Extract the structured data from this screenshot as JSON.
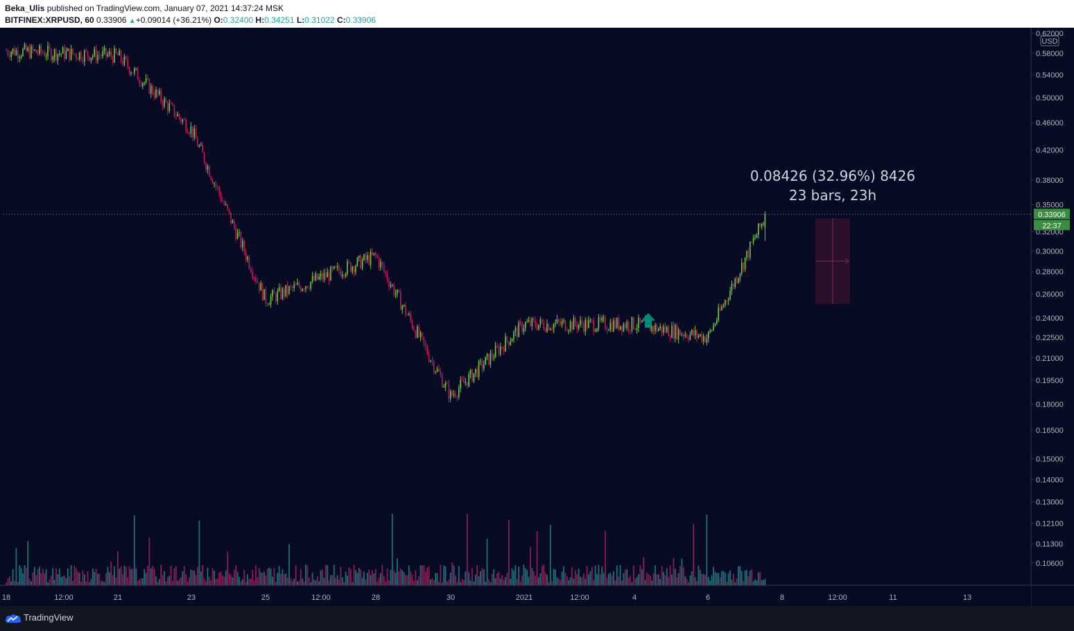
{
  "header": {
    "author": "Beka_Ulis",
    "published_text": "published on TradingView.com, January 07, 2021 14:37:24 MSK",
    "symbol": "BITFINEX:XRPUSD, 60",
    "last_price": "0.33906",
    "change": "+0.09014 (+36.21%)",
    "o_label": "O:",
    "o_value": "0.32400",
    "h_label": "H:",
    "h_value": "0.34251",
    "l_label": "L:",
    "l_value": "0.31022",
    "c_label": "C:",
    "c_value": "0.33906"
  },
  "colors": {
    "background": "#060a23",
    "up": "#6ad03c",
    "down": "#c2185b",
    "volume_up": "#1e6f7a",
    "volume_down": "#8b1d55",
    "price_tag": "#388e3c",
    "arrow": "#00897b",
    "measure_box": "#2a0f2a"
  },
  "axis": {
    "currency": "USD",
    "current_price_tag": "0.33906",
    "countdown_tag": "22:37",
    "price_labels": [
      "0.62000",
      "0.58000",
      "0.54000",
      "0.50000",
      "0.46000",
      "0.42000",
      "0.38000",
      "0.35000",
      "0.32000",
      "0.30000",
      "0.28000",
      "0.26000",
      "0.24000",
      "0.22500",
      "0.21000",
      "0.19500",
      "0.18000",
      "0.16500",
      "0.15000",
      "0.14000",
      "0.13000",
      "0.12100",
      "0.11300",
      "0.10600"
    ],
    "time_labels": [
      "18",
      "12:00",
      "21",
      "23",
      "25",
      "12:00",
      "28",
      "30",
      "2021",
      "12:00",
      "4",
      "6",
      "8",
      "12:00",
      "11",
      "13"
    ]
  },
  "measure": {
    "line1": "0.08426 (32.96%) 8426",
    "line2": "23 bars, 23h"
  },
  "footer": {
    "brand": "TradingView",
    "logo_icon": "tradingview-cloud-icon"
  },
  "chart_data": {
    "type": "line",
    "scale": "log",
    "ylim": [
      0.1,
      0.62
    ],
    "x": [
      "18",
      "21",
      "23",
      "25",
      "28",
      "30",
      "2021",
      "4",
      "6",
      "7"
    ],
    "series": [
      {
        "values": [
          0.585,
          0.575,
          0.45,
          0.255,
          0.295,
          0.185,
          0.235,
          0.235,
          0.225,
          0.339
        ]
      }
    ],
    "ohlc_last": {
      "o": 0.324,
      "h": 0.34251,
      "l": 0.31022,
      "c": 0.33906
    },
    "current_price": 0.33906,
    "grid": false
  }
}
